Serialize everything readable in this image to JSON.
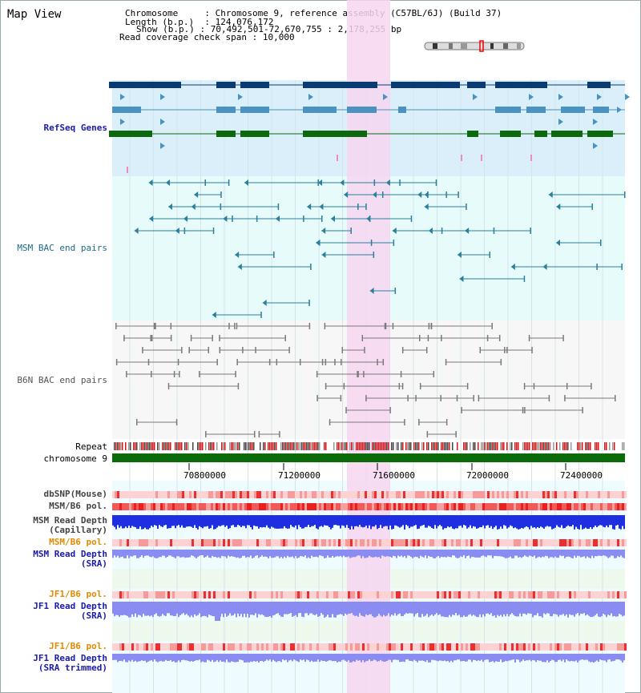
{
  "view_title": "Map View",
  "header": {
    "chromosome_key": "Chromosome",
    "chromosome_val": "Chromosome 9, reference assembly (C57BL/6J) (Build 37)",
    "length_key": "Length (b.p.)",
    "length_val": "124,076,172",
    "show_key": "Show (b.p.)",
    "show_val": "70,492,501-72,670,755 : 2,178,255 bp",
    "coverage_key": "Read coverage check span",
    "coverage_val": "10,000"
  },
  "tracks": {
    "refseq": "RefSeq Genes",
    "msm_bac": "MSM BAC end pairs",
    "b6n_bac": "B6N BAC end pairs",
    "repeat": "Repeat",
    "chromosome": "chromosome 9",
    "dbsnp": "dbSNP(Mouse)",
    "msm_pol": "MSM/B6 pol.",
    "msm_depth_cap_1": "MSM Read Depth",
    "msm_depth_cap_2": "(Capillary)",
    "msm_pol2": "MSM/B6 pol.",
    "msm_depth_sra_1": "MSM Read Depth",
    "msm_depth_sra_2": "(SRA)",
    "jf1_pol": "JF1/B6 pol.",
    "jf1_depth_1": "JF1 Read Depth",
    "jf1_depth_2": "(SRA)",
    "jf1_pol2": "JF1/B6 pol.",
    "jf1_trim_1": "JF1 Read Depth",
    "jf1_trim_2": "(SRA trimmed)"
  },
  "axis": {
    "ticks": [
      "70800000",
      "71200000",
      "71600000",
      "72000000",
      "72400000"
    ]
  },
  "colors": {
    "refseq_bg": "#dbeffa",
    "msm_bg": "#e8fbfb",
    "highlight": "#f6d6f0",
    "dark_gene": "#0a3b73",
    "mid_gene": "#4a92bf",
    "green_gene": "#0c6a0c",
    "msm_pair": "#2a7f9c",
    "b6n_pair": "#7a7a7a",
    "chromosome": "#0b6b0b",
    "depth_blue": "#1d2fe0",
    "depth_light": "#8a8cf2"
  }
}
